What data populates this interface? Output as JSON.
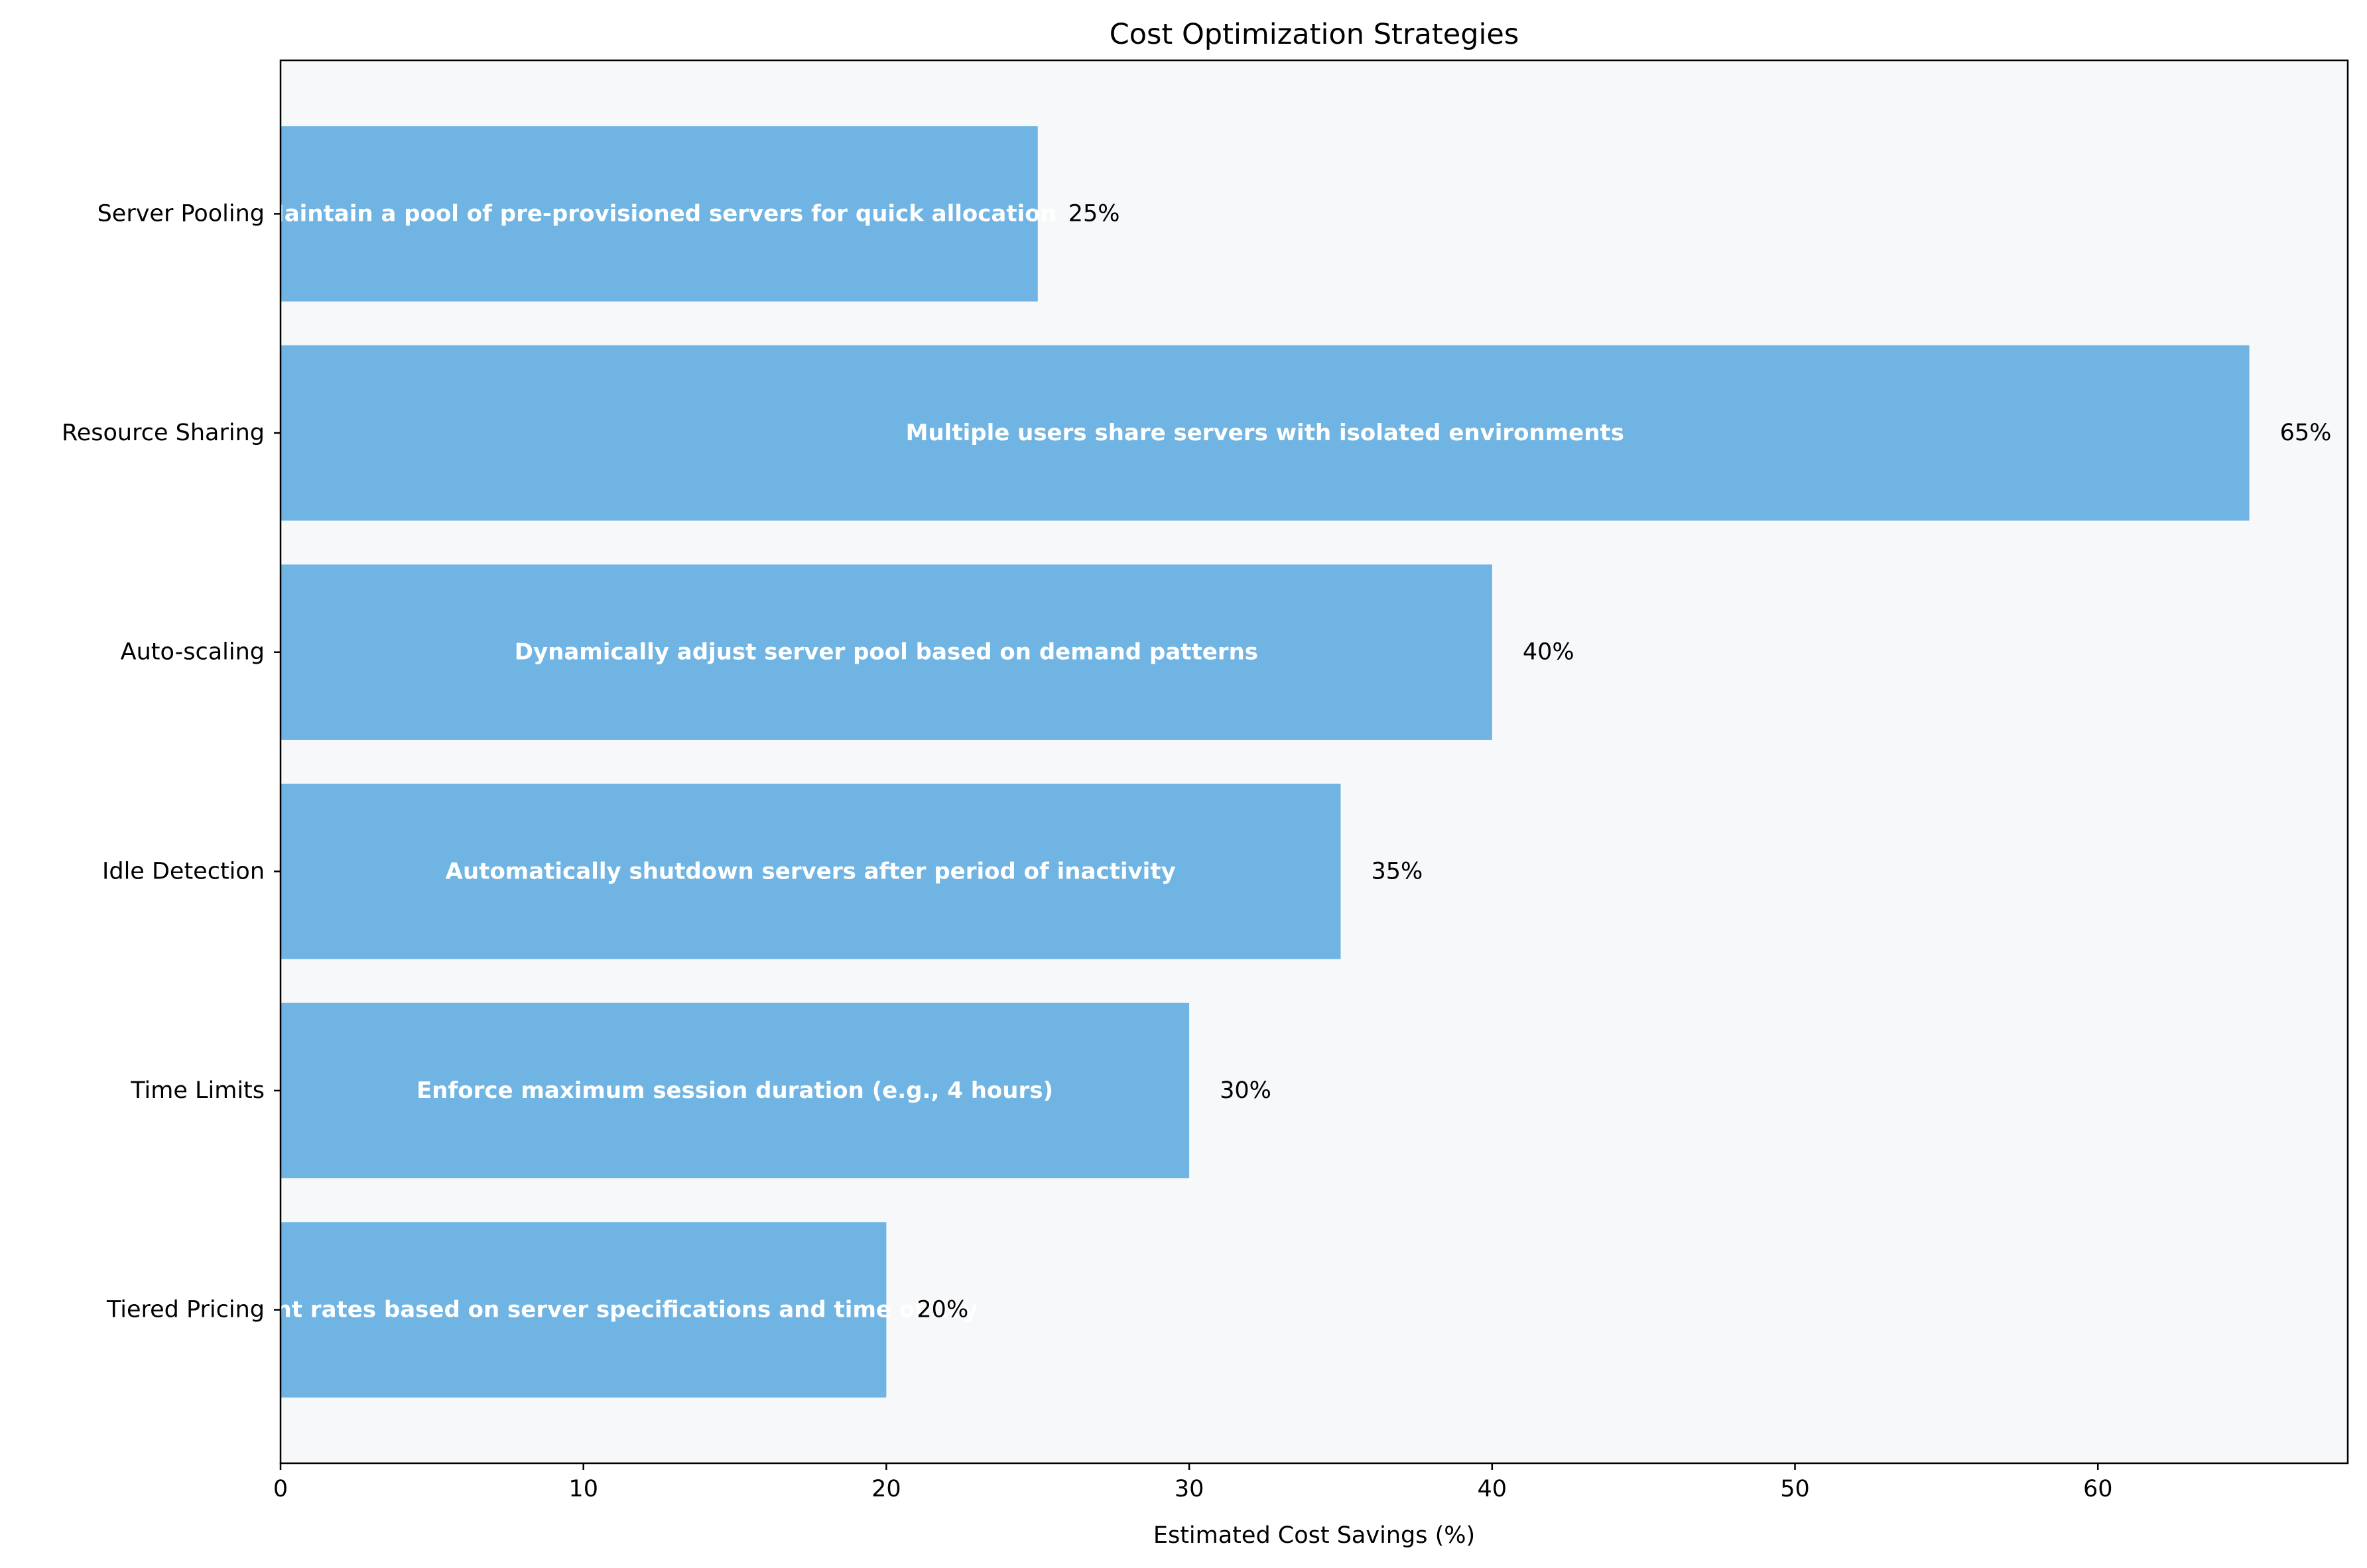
{
  "chart_data": {
    "type": "bar",
    "orientation": "horizontal",
    "title": "Cost Optimization Strategies",
    "xlabel": "Estimated Cost Savings (%)",
    "ylabel": "",
    "xlim": [
      0,
      68.25
    ],
    "xticks": [
      0,
      10,
      20,
      30,
      40,
      50,
      60
    ],
    "grid": false,
    "colors": {
      "bar": "#6fb4e2",
      "plot_bg": "#f7f8fa",
      "text_on_bar": "#ffffff"
    },
    "categories": [
      "Server Pooling",
      "Resource Sharing",
      "Auto-scaling",
      "Idle Detection",
      "Time Limits",
      "Tiered Pricing"
    ],
    "values": [
      25,
      65,
      40,
      35,
      30,
      20
    ],
    "value_labels": [
      "25%",
      "65%",
      "40%",
      "35%",
      "30%",
      "20%"
    ],
    "descriptions": [
      "Maintain a pool of pre-provisioned servers for quick allocation",
      "Multiple users share servers with isolated environments",
      "Dynamically adjust server pool based on demand patterns",
      "Automatically shutdown servers after period of inactivity",
      "Enforce maximum session duration (e.g., 4 hours)",
      "Different rates based on server specifications and time of day"
    ]
  }
}
